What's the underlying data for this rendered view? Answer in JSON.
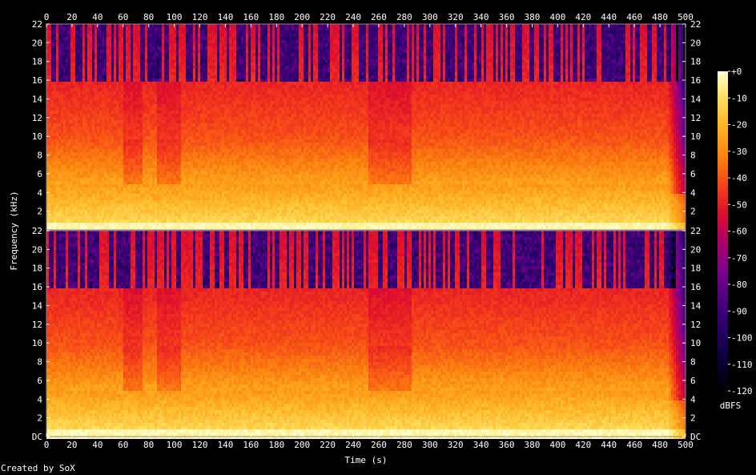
{
  "chart_data": {
    "type": "heatmap",
    "xlabel": "Time (s)",
    "ylabel": "Frequency (kHz)",
    "xlim": [
      0,
      500
    ],
    "ylim": [
      0,
      22
    ],
    "x_ticks": [
      "0",
      "20",
      "40",
      "60",
      "80",
      "100",
      "120",
      "140",
      "160",
      "180",
      "200",
      "220",
      "240",
      "260",
      "280",
      "300",
      "320",
      "340",
      "360",
      "380",
      "400",
      "420",
      "440",
      "460",
      "480",
      "500"
    ],
    "y_ticks": [
      "DC",
      "2",
      "4",
      "6",
      "8",
      "10",
      "12",
      "14",
      "16",
      "18",
      "20",
      "22"
    ],
    "channels": 2,
    "colorbar": {
      "label": "dBFS",
      "ticks": [
        "+0",
        "-10",
        "-20",
        "-30",
        "-40",
        "-50",
        "-60",
        "-70",
        "-80",
        "-90",
        "-100",
        "-110",
        "-120"
      ],
      "range": [
        -120,
        0
      ]
    },
    "lowpass_cutoff_khz": 16,
    "duration_s": 502,
    "colormap": [
      "#000000",
      "#10004a",
      "#3a0078",
      "#7a0090",
      "#b5005f",
      "#e0102a",
      "#f5401a",
      "#fb7a10",
      "#ffb020",
      "#ffe060",
      "#ffffd0"
    ]
  },
  "footer": {
    "credit": "Created by SoX"
  }
}
